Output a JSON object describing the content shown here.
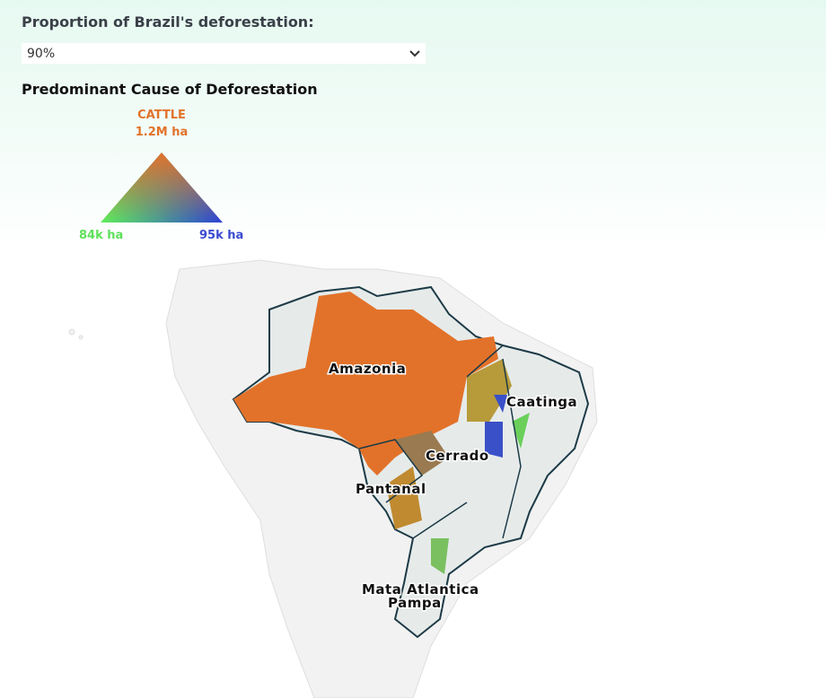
{
  "controls": {
    "proportion_label": "Proportion of Brazil's deforestation:",
    "proportion_value": "90%",
    "dropdown_icon": "chevron-down-icon"
  },
  "legend": {
    "title": "Predominant Cause of Deforestation",
    "top_label": "CATTLE",
    "top_value": "1.2M ha",
    "left_value": "84k ha",
    "right_value": "95k ha",
    "colors": {
      "top": "#e2722a",
      "left": "#5ef05a",
      "right": "#2a40d8"
    }
  },
  "map": {
    "regions": [
      "Amazonia",
      "Caatinga",
      "Cerrado",
      "Pantanal",
      "Mata Atlantica",
      "Pampa"
    ],
    "colors": {
      "cattle": "#e2722a",
      "border": "#1d3b47",
      "land": "#f2f2f2",
      "brazil": "#e6ebea"
    }
  }
}
